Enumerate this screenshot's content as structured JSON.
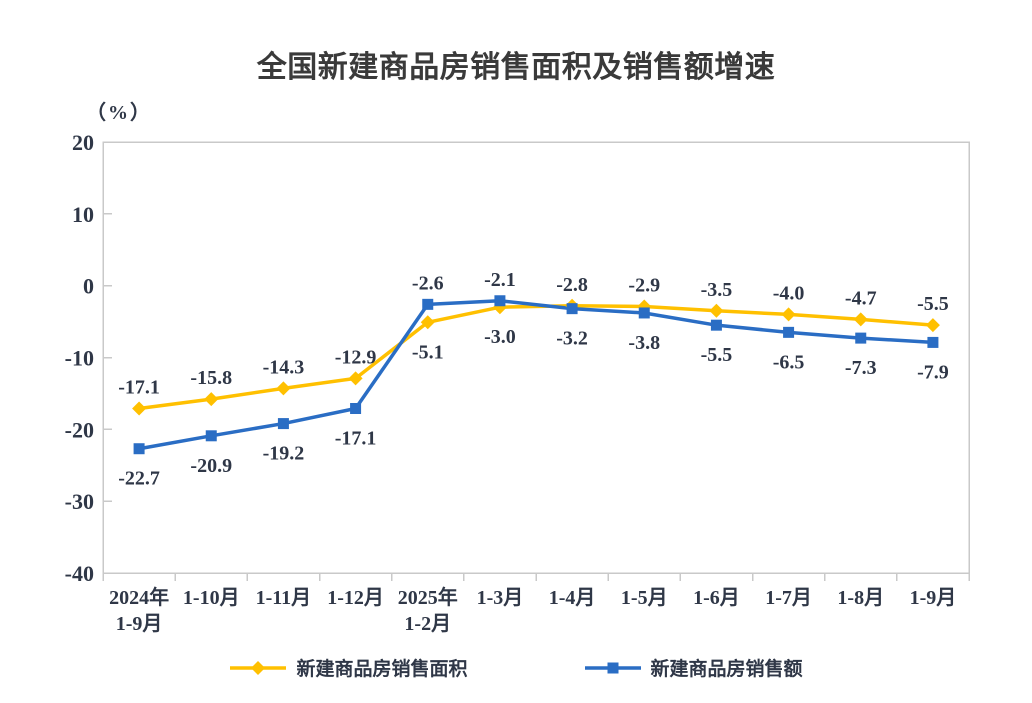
{
  "chart_data": {
    "type": "line",
    "title": "全国新建商品房销售面积及销售额增速",
    "unit_label": "（%）",
    "categories": [
      "2024年\n1-9月",
      "1-10月",
      "1-11月",
      "1-12月",
      "2025年\n1-2月",
      "1-3月",
      "1-4月",
      "1-5月",
      "1-6月",
      "1-7月",
      "1-8月",
      "1-9月"
    ],
    "series": [
      {
        "name": "新建商品房销售面积",
        "marker": "diamond",
        "color": "#FFC000",
        "values": [
          -17.1,
          -15.8,
          -14.3,
          -12.9,
          -5.1,
          -3.0,
          -2.8,
          -2.9,
          -3.5,
          -4.0,
          -4.7,
          -5.5
        ]
      },
      {
        "name": "新建商品房销售额",
        "marker": "square",
        "color": "#2A6DC4",
        "values": [
          -22.7,
          -20.9,
          -19.2,
          -17.1,
          -2.6,
          -2.1,
          -3.2,
          -3.8,
          -5.5,
          -6.5,
          -7.3,
          -7.9
        ]
      }
    ],
    "ylim": [
      -40,
      20
    ],
    "yticks": [
      20,
      10,
      0,
      -10,
      -20,
      -30,
      -40
    ],
    "grid": false,
    "legend_position": "bottom",
    "axis_color": "#c9c9c9",
    "label_color": "#2f3747"
  }
}
